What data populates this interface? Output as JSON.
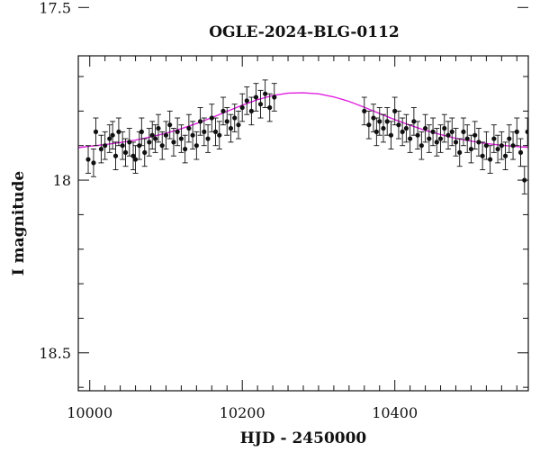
{
  "chart_data": {
    "type": "scatter",
    "title": "OGLE-2024-BLG-0112",
    "xlabel": "HJD - 2450000",
    "ylabel": "I magnitude",
    "xlim": [
      9985,
      10575
    ],
    "ylim": [
      18.61,
      17.64
    ],
    "y_inverted": true,
    "x_ticks": [
      10000,
      10200,
      10400
    ],
    "y_ticks": [
      17.5,
      18,
      18.5
    ],
    "y_tick_labels": [
      "17.5",
      "18",
      "18.5"
    ],
    "grid": false,
    "legend": "none",
    "colors": {
      "points": "#111111",
      "model": "#e020e0",
      "axes": "#111111"
    },
    "series": [
      {
        "type": "scatter_with_errorbars",
        "x": [
          9998,
          10005,
          10008,
          10015,
          10020,
          10026,
          10030,
          10034,
          10038,
          10043,
          10047,
          10052,
          10057,
          10060,
          10065,
          10068,
          10072,
          10078,
          10082,
          10086,
          10090,
          10095,
          10100,
          10105,
          10110,
          10115,
          10120,
          10125,
          10130,
          10135,
          10140,
          10145,
          10150,
          10155,
          10160,
          10165,
          10170,
          10175,
          10180,
          10185,
          10190,
          10195,
          10200,
          10206,
          10212,
          10218,
          10224,
          10230,
          10236,
          10242,
          10360,
          10366,
          10372,
          10376,
          10380,
          10385,
          10390,
          10395,
          10400,
          10405,
          10410,
          10415,
          10420,
          10425,
          10430,
          10435,
          10440,
          10445,
          10450,
          10455,
          10460,
          10465,
          10470,
          10475,
          10480,
          10485,
          10490,
          10495,
          10500,
          10505,
          10510,
          10515,
          10520,
          10525,
          10530,
          10535,
          10540,
          10545,
          10550,
          10555,
          10560,
          10565,
          10570,
          10574
        ],
        "y": [
          17.94,
          17.95,
          17.86,
          17.91,
          17.9,
          17.88,
          17.87,
          17.93,
          17.86,
          17.9,
          17.92,
          17.89,
          17.93,
          17.94,
          17.9,
          17.86,
          17.92,
          17.89,
          17.87,
          17.88,
          17.85,
          17.9,
          17.87,
          17.84,
          17.89,
          17.86,
          17.88,
          17.91,
          17.85,
          17.87,
          17.9,
          17.83,
          17.86,
          17.88,
          17.82,
          17.86,
          17.87,
          17.8,
          17.83,
          17.85,
          17.82,
          17.84,
          17.79,
          17.77,
          17.8,
          17.76,
          17.78,
          17.75,
          17.79,
          17.76,
          17.8,
          17.84,
          17.82,
          17.86,
          17.83,
          17.85,
          17.83,
          17.87,
          17.8,
          17.84,
          17.86,
          17.85,
          17.88,
          17.83,
          17.87,
          17.9,
          17.85,
          17.88,
          17.86,
          17.89,
          17.88,
          17.85,
          17.87,
          17.86,
          17.89,
          17.92,
          17.86,
          17.88,
          17.91,
          17.87,
          17.89,
          17.93,
          17.9,
          17.94,
          17.88,
          17.91,
          17.9,
          17.93,
          17.88,
          17.9,
          17.86,
          17.92,
          18.0,
          17.86
        ],
        "yerr": 0.04
      },
      {
        "type": "model_curve",
        "name": "",
        "peak_x": 10282,
        "peak_mag": 17.75,
        "baseline_mag": 17.91,
        "x": [
          9985,
          10000,
          10020,
          10040,
          10060,
          10080,
          10100,
          10120,
          10140,
          10160,
          10180,
          10200,
          10220,
          10240,
          10260,
          10280,
          10300,
          10320,
          10340,
          10360,
          10380,
          10400,
          10420,
          10440,
          10460,
          10480,
          10500,
          10520,
          10540,
          10560,
          10575
        ],
        "y": [
          17.906,
          17.902,
          17.897,
          17.891,
          17.884,
          17.875,
          17.864,
          17.851,
          17.836,
          17.819,
          17.801,
          17.783,
          17.767,
          17.755,
          17.748,
          17.747,
          17.75,
          17.759,
          17.772,
          17.789,
          17.807,
          17.825,
          17.841,
          17.856,
          17.868,
          17.879,
          17.887,
          17.894,
          17.899,
          17.903,
          17.905
        ]
      }
    ]
  }
}
